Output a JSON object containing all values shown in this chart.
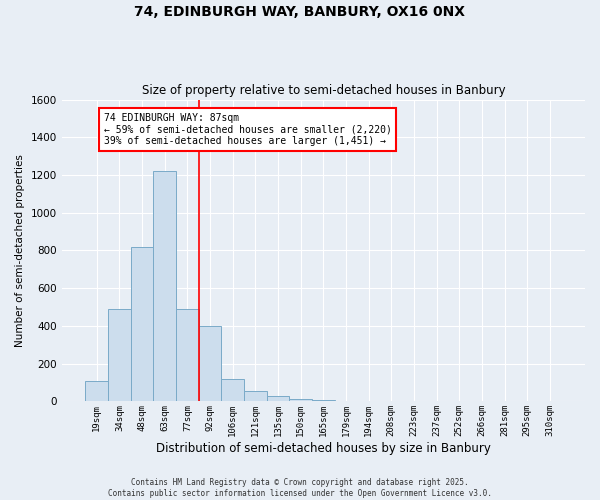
{
  "title_line1": "74, EDINBURGH WAY, BANBURY, OX16 0NX",
  "title_line2": "Size of property relative to semi-detached houses in Banbury",
  "xlabel": "Distribution of semi-detached houses by size in Banbury",
  "ylabel": "Number of semi-detached properties",
  "categories": [
    "19sqm",
    "34sqm",
    "48sqm",
    "63sqm",
    "77sqm",
    "92sqm",
    "106sqm",
    "121sqm",
    "135sqm",
    "150sqm",
    "165sqm",
    "179sqm",
    "194sqm",
    "208sqm",
    "223sqm",
    "237sqm",
    "252sqm",
    "266sqm",
    "281sqm",
    "295sqm",
    "310sqm"
  ],
  "values": [
    110,
    490,
    820,
    1220,
    490,
    400,
    120,
    55,
    30,
    12,
    5,
    2,
    0,
    0,
    0,
    0,
    0,
    0,
    0,
    0,
    0
  ],
  "bar_color": "#ccdded",
  "bar_edge_color": "#7aaac8",
  "vline_index": 4,
  "annotation_text": "74 EDINBURGH WAY: 87sqm\n← 59% of semi-detached houses are smaller (2,220)\n39% of semi-detached houses are larger (1,451) →",
  "annotation_box_color": "white",
  "annotation_box_edge_color": "red",
  "vline_color": "red",
  "ylim": [
    0,
    1600
  ],
  "yticks": [
    0,
    200,
    400,
    600,
    800,
    1000,
    1200,
    1400,
    1600
  ],
  "footer_line1": "Contains HM Land Registry data © Crown copyright and database right 2025.",
  "footer_line2": "Contains public sector information licensed under the Open Government Licence v3.0.",
  "bg_color": "#e8eef5",
  "plot_bg_color": "#e8eef5",
  "grid_color": "#ffffff"
}
